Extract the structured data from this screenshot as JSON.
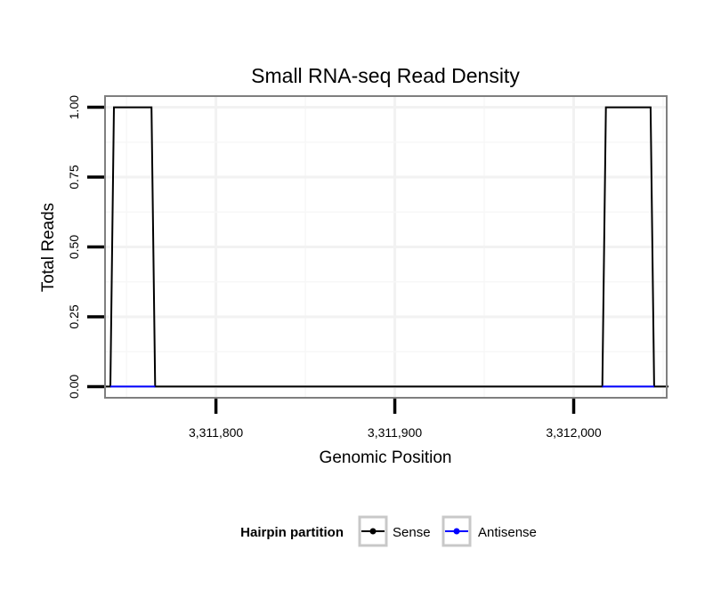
{
  "chart_data": {
    "type": "line",
    "title": "Small RNA-seq Read Density",
    "xlabel": "Genomic Position",
    "ylabel": "Total Reads",
    "xlim": [
      3311738,
      3312052
    ],
    "ylim": [
      -0.04,
      1.04
    ],
    "x_ticks": [
      3311800,
      3311900,
      3312000
    ],
    "x_tick_labels": [
      "3,311,800",
      "3,311,900",
      "3,312,000"
    ],
    "x_gridlines_minor": [
      3311750,
      3311850,
      3311950,
      3312050
    ],
    "y_ticks": [
      0,
      0.25,
      0.5,
      0.75,
      1.0
    ],
    "y_tick_labels": [
      "0.00",
      "0.25",
      "0.50",
      "0.75",
      "1.00"
    ],
    "grid": true,
    "legend": {
      "title": "Hairpin partition",
      "position": "bottom",
      "entries": [
        {
          "name": "Sense",
          "color": "#000000"
        },
        {
          "name": "Antisense",
          "color": "#0000ff"
        }
      ]
    },
    "series": [
      {
        "name": "Sense",
        "color": "#000000",
        "x": [
          3311737,
          3311741,
          3311743,
          3311764,
          3311766,
          3312016,
          3312018,
          3312043,
          3312045,
          3312053
        ],
        "y": [
          0,
          0,
          1,
          1,
          0,
          0,
          1,
          1,
          0,
          0
        ]
      },
      {
        "name": "Antisense",
        "color": "#0000ff",
        "segments": [
          {
            "x": [
              3311741,
              3311766
            ],
            "y": [
              0,
              0
            ]
          },
          {
            "x": [
              3312016,
              3312045
            ],
            "y": [
              0,
              0
            ]
          }
        ]
      }
    ]
  }
}
